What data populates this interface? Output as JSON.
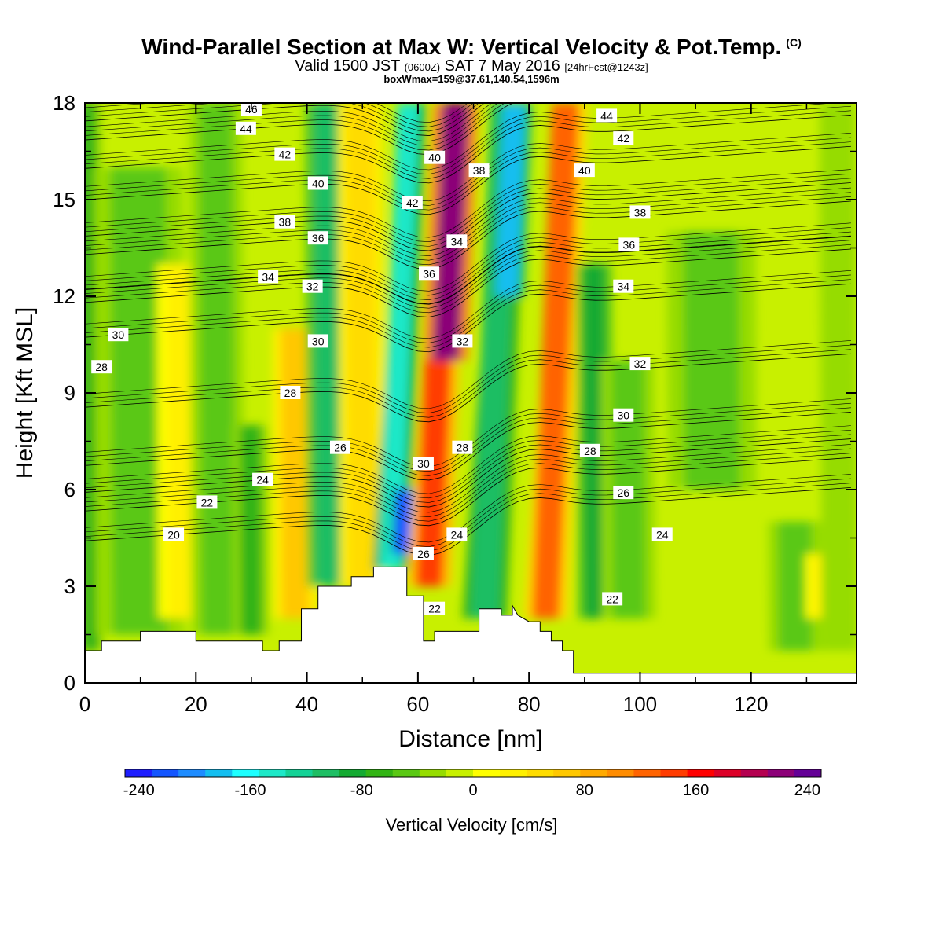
{
  "title": {
    "main": "Wind-Parallel Section at Max W: Vertical Velocity & Pot.Temp.",
    "main_suffix": "(C)",
    "valid_prefix": "Valid 1500 JST",
    "valid_z": "(0600Z)",
    "valid_date": "SAT 7 May 2016",
    "fcst": "[24hrFcst@1243z]",
    "box": "boxWmax=159@37.61,140.54,1596m"
  },
  "chart_data": {
    "type": "heatmap",
    "xlabel": "Distance [nm]",
    "ylabel": "Height [Kft MSL]",
    "xlim": [
      0,
      139
    ],
    "ylim": [
      0,
      18
    ],
    "xticks": [
      0,
      20,
      40,
      60,
      80,
      100,
      120
    ],
    "yticks": [
      0,
      3,
      6,
      9,
      12,
      15,
      18
    ],
    "background_value": 0,
    "velocity_bands": [
      {
        "x": 1,
        "y": [
          1,
          18
        ],
        "half_width": 1.5,
        "w": -55
      },
      {
        "x": 10,
        "y": [
          1.5,
          16
        ],
        "half_width": 5,
        "w": -45
      },
      {
        "x": 18,
        "y": [
          2,
          13
        ],
        "half_width": 3,
        "w": 35
      },
      {
        "x": 24,
        "y": [
          1.5,
          18
        ],
        "half_width": 3,
        "w": -40
      },
      {
        "x": 30,
        "y": [
          1.5,
          8
        ],
        "half_width": 2,
        "w": -60
      },
      {
        "x": 38,
        "y": [
          2,
          11
        ],
        "half_width": 2.5,
        "w": 70
      },
      {
        "x": 44,
        "y": [
          3,
          18
        ],
        "half_width": 2.5,
        "w": -100
      },
      {
        "x": 50,
        "y": [
          3,
          18
        ],
        "half_width": 2.5,
        "w": 60
      },
      {
        "x": 55,
        "y": [
          3.5,
          18
        ],
        "half_width": 2,
        "w": -150
      },
      {
        "x": 57,
        "y": [
          4,
          6
        ],
        "half_width": 1.5,
        "w": -230
      },
      {
        "x": 62,
        "y": [
          3,
          18
        ],
        "half_width": 2.5,
        "w": 150
      },
      {
        "x": 65,
        "y": [
          10,
          18
        ],
        "half_width": 2.5,
        "w": 230
      },
      {
        "x": 72,
        "y": [
          2,
          18
        ],
        "half_width": 2.5,
        "w": -110
      },
      {
        "x": 76,
        "y": [
          12,
          18
        ],
        "half_width": 2,
        "w": -190
      },
      {
        "x": 83,
        "y": [
          2,
          18
        ],
        "half_width": 2.5,
        "w": 130
      },
      {
        "x": 92,
        "y": [
          2,
          13
        ],
        "half_width": 2,
        "w": -80
      },
      {
        "x": 98,
        "y": [
          2,
          10
        ],
        "half_width": 3,
        "w": -40
      },
      {
        "x": 113,
        "y": [
          6,
          14
        ],
        "half_width": 5,
        "w": -50
      },
      {
        "x": 128,
        "y": [
          1,
          5
        ],
        "half_width": 3,
        "w": -40
      },
      {
        "x": 133,
        "y": [
          2,
          4
        ],
        "half_width": 2,
        "w": 40
      },
      {
        "x": 136,
        "y": [
          1,
          18
        ],
        "half_width": 2,
        "w": -30
      }
    ],
    "terrain": [
      [
        0,
        1.0
      ],
      [
        3,
        1.0
      ],
      [
        3,
        1.3
      ],
      [
        10,
        1.3
      ],
      [
        10,
        1.6
      ],
      [
        20,
        1.6
      ],
      [
        20,
        1.3
      ],
      [
        32,
        1.3
      ],
      [
        32,
        1.0
      ],
      [
        35,
        1.0
      ],
      [
        35,
        1.3
      ],
      [
        39,
        1.3
      ],
      [
        39,
        2.3
      ],
      [
        42,
        2.3
      ],
      [
        42,
        3.0
      ],
      [
        48,
        3.0
      ],
      [
        48,
        3.3
      ],
      [
        52,
        3.3
      ],
      [
        52,
        3.6
      ],
      [
        58,
        3.6
      ],
      [
        58,
        2.7
      ],
      [
        61,
        2.7
      ],
      [
        61,
        1.3
      ],
      [
        63,
        1.3
      ],
      [
        63,
        1.6
      ],
      [
        71,
        1.6
      ],
      [
        71,
        2.3
      ],
      [
        75,
        2.3
      ],
      [
        75,
        2.1
      ],
      [
        77,
        2.1
      ],
      [
        77,
        2.4
      ],
      [
        78,
        2.1
      ],
      [
        80,
        1.9
      ],
      [
        82,
        1.9
      ],
      [
        82,
        1.6
      ],
      [
        84,
        1.6
      ],
      [
        84,
        1.3
      ],
      [
        86,
        1.3
      ],
      [
        86,
        1.0
      ],
      [
        88,
        1.0
      ],
      [
        88,
        0.3
      ],
      [
        139,
        0.3
      ]
    ],
    "isentropes": [
      {
        "value": 20,
        "label_at": [
          16,
          4.6
        ]
      },
      {
        "value": 22,
        "label_at": [
          22,
          5.6
        ],
        "label_at2": [
          95,
          2.6
        ]
      },
      {
        "value": 24,
        "label_at": [
          32,
          6.3
        ],
        "label_at2": [
          104,
          4.6
        ]
      },
      {
        "value": 26,
        "label_at": [
          46,
          7.3
        ],
        "label_at2": [
          97,
          5.9
        ]
      },
      {
        "value": 28,
        "label_at": [
          37,
          9.0
        ],
        "label_at2": [
          91,
          7.2
        ]
      },
      {
        "value": 30,
        "label_at": [
          6,
          10.8
        ],
        "label_at2": [
          97,
          8.3
        ]
      },
      {
        "value": 32,
        "label_at": [
          41,
          12.3
        ],
        "label_at2": [
          100,
          9.9
        ]
      },
      {
        "value": 34,
        "label_at": [
          33,
          12.6
        ],
        "label_at2": [
          97,
          12.3
        ]
      },
      {
        "value": 36,
        "label_at": [
          42,
          13.8
        ],
        "label_at2": [
          98,
          13.6
        ]
      },
      {
        "value": 38,
        "label_at": [
          36,
          14.3
        ],
        "label_at2": [
          100,
          14.6
        ]
      },
      {
        "value": 40,
        "label_at": [
          42,
          15.5
        ],
        "label_at2": [
          90,
          15.9
        ]
      },
      {
        "value": 42,
        "label_at": [
          36,
          16.4
        ],
        "label_at2": [
          97,
          16.9
        ]
      },
      {
        "value": 44,
        "label_at": [
          29,
          17.2
        ],
        "label_at2": [
          94,
          17.6
        ]
      },
      {
        "value": 46,
        "label_at": [
          30,
          17.8
        ]
      }
    ],
    "extra_isentrope_labels": [
      {
        "value": 28,
        "at": [
          3,
          9.8
        ]
      },
      {
        "value": 30,
        "at": [
          42,
          10.6
        ]
      },
      {
        "value": 22,
        "at": [
          63,
          2.3
        ]
      },
      {
        "value": 26,
        "at": [
          61,
          4.0
        ]
      },
      {
        "value": 24,
        "at": [
          67,
          4.6
        ]
      },
      {
        "value": 30,
        "at": [
          61,
          6.8
        ]
      },
      {
        "value": 28,
        "at": [
          68,
          7.3
        ]
      },
      {
        "value": 32,
        "at": [
          68,
          10.6
        ]
      },
      {
        "value": 36,
        "at": [
          62,
          12.7
        ]
      },
      {
        "value": 34,
        "at": [
          67,
          13.7
        ]
      },
      {
        "value": 42,
        "at": [
          59,
          14.9
        ]
      },
      {
        "value": 40,
        "at": [
          63,
          16.3
        ]
      },
      {
        "value": 38,
        "at": [
          71,
          15.9
        ]
      }
    ],
    "colorbar": {
      "title": "Vertical Velocity [cm/s]",
      "min": -250,
      "max": 250,
      "step": 20,
      "tick_values": [
        -240,
        -160,
        -80,
        0,
        80,
        160,
        240
      ],
      "colors": [
        "#1e1eff",
        "#1456ff",
        "#1e8cff",
        "#14bef0",
        "#1effff",
        "#1ee8c8",
        "#14d296",
        "#1ebe64",
        "#14aa32",
        "#32b414",
        "#5ac814",
        "#96dc00",
        "#c8f000",
        "#ffff00",
        "#fff000",
        "#ffdc00",
        "#ffc800",
        "#ffaa00",
        "#ff8c00",
        "#ff6400",
        "#ff3c00",
        "#ff0000",
        "#dc0028",
        "#b40050",
        "#8c0078",
        "#640096"
      ]
    }
  }
}
